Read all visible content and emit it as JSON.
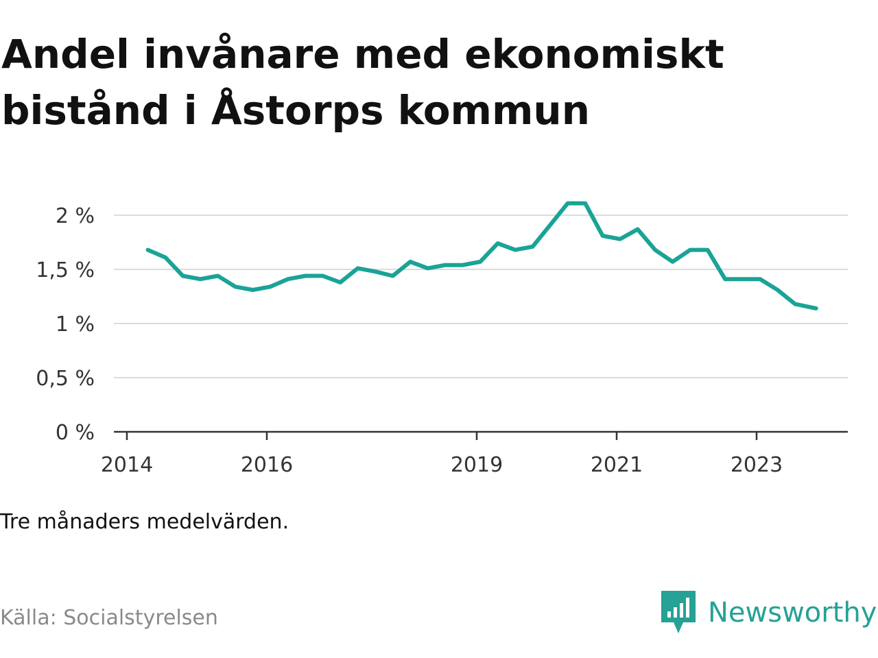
{
  "title": "Andel invånare med ekonomiskt bistånd i Åstorps kommun",
  "subtitle": "Tre månaders medelvärden.",
  "source": "Källa: Socialstyrelsen",
  "brand": {
    "name": "Newsworthy",
    "color": "#25a195",
    "icon": "newsworthy-bar-chart-speech-bubble-icon"
  },
  "colors": {
    "line": "#1aa396",
    "grid": "#dcdcdc",
    "axis": "#333333"
  },
  "chart_data": {
    "type": "line",
    "title": "Andel invånare med ekonomiskt bistånd i Åstorps kommun",
    "xlabel": "",
    "ylabel": "",
    "grid": true,
    "legend": "none",
    "ylim": [
      0,
      2
    ],
    "xlim": [
      2014,
      2024.2
    ],
    "yticks": [
      {
        "value": 0,
        "label": "0 %"
      },
      {
        "value": 0.5,
        "label": "0,5 %"
      },
      {
        "value": 1,
        "label": "1 %"
      },
      {
        "value": 1.5,
        "label": "1,5 %"
      },
      {
        "value": 2,
        "label": "2 %"
      }
    ],
    "xticks": [
      {
        "value": 2014,
        "label": "2014"
      },
      {
        "value": 2016,
        "label": "2016"
      },
      {
        "value": 2019,
        "label": "2019"
      },
      {
        "value": 2021,
        "label": "2021"
      },
      {
        "value": 2023,
        "label": "2023"
      }
    ],
    "series": [
      {
        "color": "#1aa396",
        "points": [
          [
            2014.3,
            1.68
          ],
          [
            2014.55,
            1.61
          ],
          [
            2014.8,
            1.44
          ],
          [
            2015.05,
            1.41
          ],
          [
            2015.3,
            1.44
          ],
          [
            2015.55,
            1.34
          ],
          [
            2015.8,
            1.31
          ],
          [
            2016.05,
            1.34
          ],
          [
            2016.3,
            1.41
          ],
          [
            2016.55,
            1.44
          ],
          [
            2016.8,
            1.44
          ],
          [
            2017.05,
            1.38
          ],
          [
            2017.3,
            1.51
          ],
          [
            2017.55,
            1.48
          ],
          [
            2017.8,
            1.44
          ],
          [
            2018.05,
            1.57
          ],
          [
            2018.3,
            1.51
          ],
          [
            2018.55,
            1.54
          ],
          [
            2018.8,
            1.54
          ],
          [
            2019.05,
            1.57
          ],
          [
            2019.3,
            1.74
          ],
          [
            2019.55,
            1.68
          ],
          [
            2019.8,
            1.71
          ],
          [
            2020.05,
            1.91
          ],
          [
            2020.3,
            2.11
          ],
          [
            2020.55,
            2.11
          ],
          [
            2020.8,
            1.81
          ],
          [
            2021.05,
            1.78
          ],
          [
            2021.3,
            1.87
          ],
          [
            2021.55,
            1.68
          ],
          [
            2021.8,
            1.57
          ],
          [
            2022.05,
            1.68
          ],
          [
            2022.3,
            1.68
          ],
          [
            2022.55,
            1.41
          ],
          [
            2022.8,
            1.41
          ],
          [
            2023.05,
            1.41
          ],
          [
            2023.3,
            1.31
          ],
          [
            2023.55,
            1.18
          ],
          [
            2023.85,
            1.14
          ]
        ]
      }
    ]
  }
}
